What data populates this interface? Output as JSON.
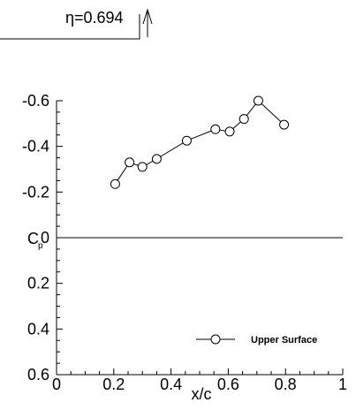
{
  "chart_data": {
    "type": "line",
    "station_label": "η=0.694",
    "ylabel": "C",
    "ylabel_subscript": "p",
    "xlabel": "x/c",
    "xlim": [
      0,
      1
    ],
    "ylim_top": -0.6,
    "ylim_bottom": 0.6,
    "y_inverted": true,
    "x_ticks": [
      "0",
      "0.2",
      "0.4",
      "0.6",
      "0.8",
      "1"
    ],
    "y_ticks": [
      "-0.6",
      "-0.4",
      "-0.2",
      "0",
      "0.2",
      "0.4",
      "0.6"
    ],
    "zero_line": true,
    "legend_position": "bottom-right",
    "series": [
      {
        "name": "Upper Surface",
        "marker": "open-circle",
        "color": "#000000",
        "x": [
          0.205,
          0.255,
          0.3,
          0.35,
          0.455,
          0.555,
          0.605,
          0.655,
          0.705,
          0.795
        ],
        "y": [
          -0.235,
          -0.33,
          -0.31,
          -0.345,
          -0.425,
          -0.475,
          -0.465,
          -0.52,
          -0.6,
          -0.495
        ]
      }
    ]
  }
}
